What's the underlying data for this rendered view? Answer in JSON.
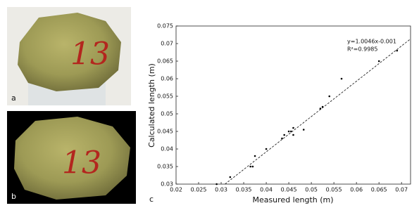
{
  "photos": [
    {
      "label": "a",
      "marking": "13"
    },
    {
      "label": "b",
      "marking": "13"
    }
  ],
  "chart_data": {
    "type": "scatter",
    "panel_label": "c",
    "xlabel": "Measured length (m)",
    "ylabel": "Calculated length (m)",
    "annotations": [
      "y=1.0046x-0.001",
      "R²=0.9985"
    ],
    "trendline": {
      "slope": 1.0046,
      "intercept": -0.001
    },
    "x": [
      0.029,
      0.032,
      0.0365,
      0.037,
      0.0375,
      0.04,
      0.0435,
      0.044,
      0.045,
      0.0455,
      0.046,
      0.046,
      0.0483,
      0.052,
      0.0525,
      0.054,
      0.0567,
      0.065,
      0.069
    ],
    "values": [
      0.03,
      0.032,
      0.035,
      0.035,
      0.038,
      0.04,
      0.043,
      0.044,
      0.045,
      0.045,
      0.046,
      0.044,
      0.0455,
      0.0515,
      0.052,
      0.055,
      0.06,
      0.065,
      0.068
    ],
    "color": "#000000",
    "xlim": [
      0.02,
      0.072
    ],
    "ylim": [
      0.03,
      0.075
    ],
    "xticks": [
      0.02,
      0.025,
      0.03,
      0.035,
      0.04,
      0.045,
      0.05,
      0.055,
      0.06,
      0.065,
      0.07
    ],
    "yticks": [
      0.03,
      0.035,
      0.04,
      0.045,
      0.05,
      0.055,
      0.06,
      0.065,
      0.07,
      0.075
    ]
  }
}
